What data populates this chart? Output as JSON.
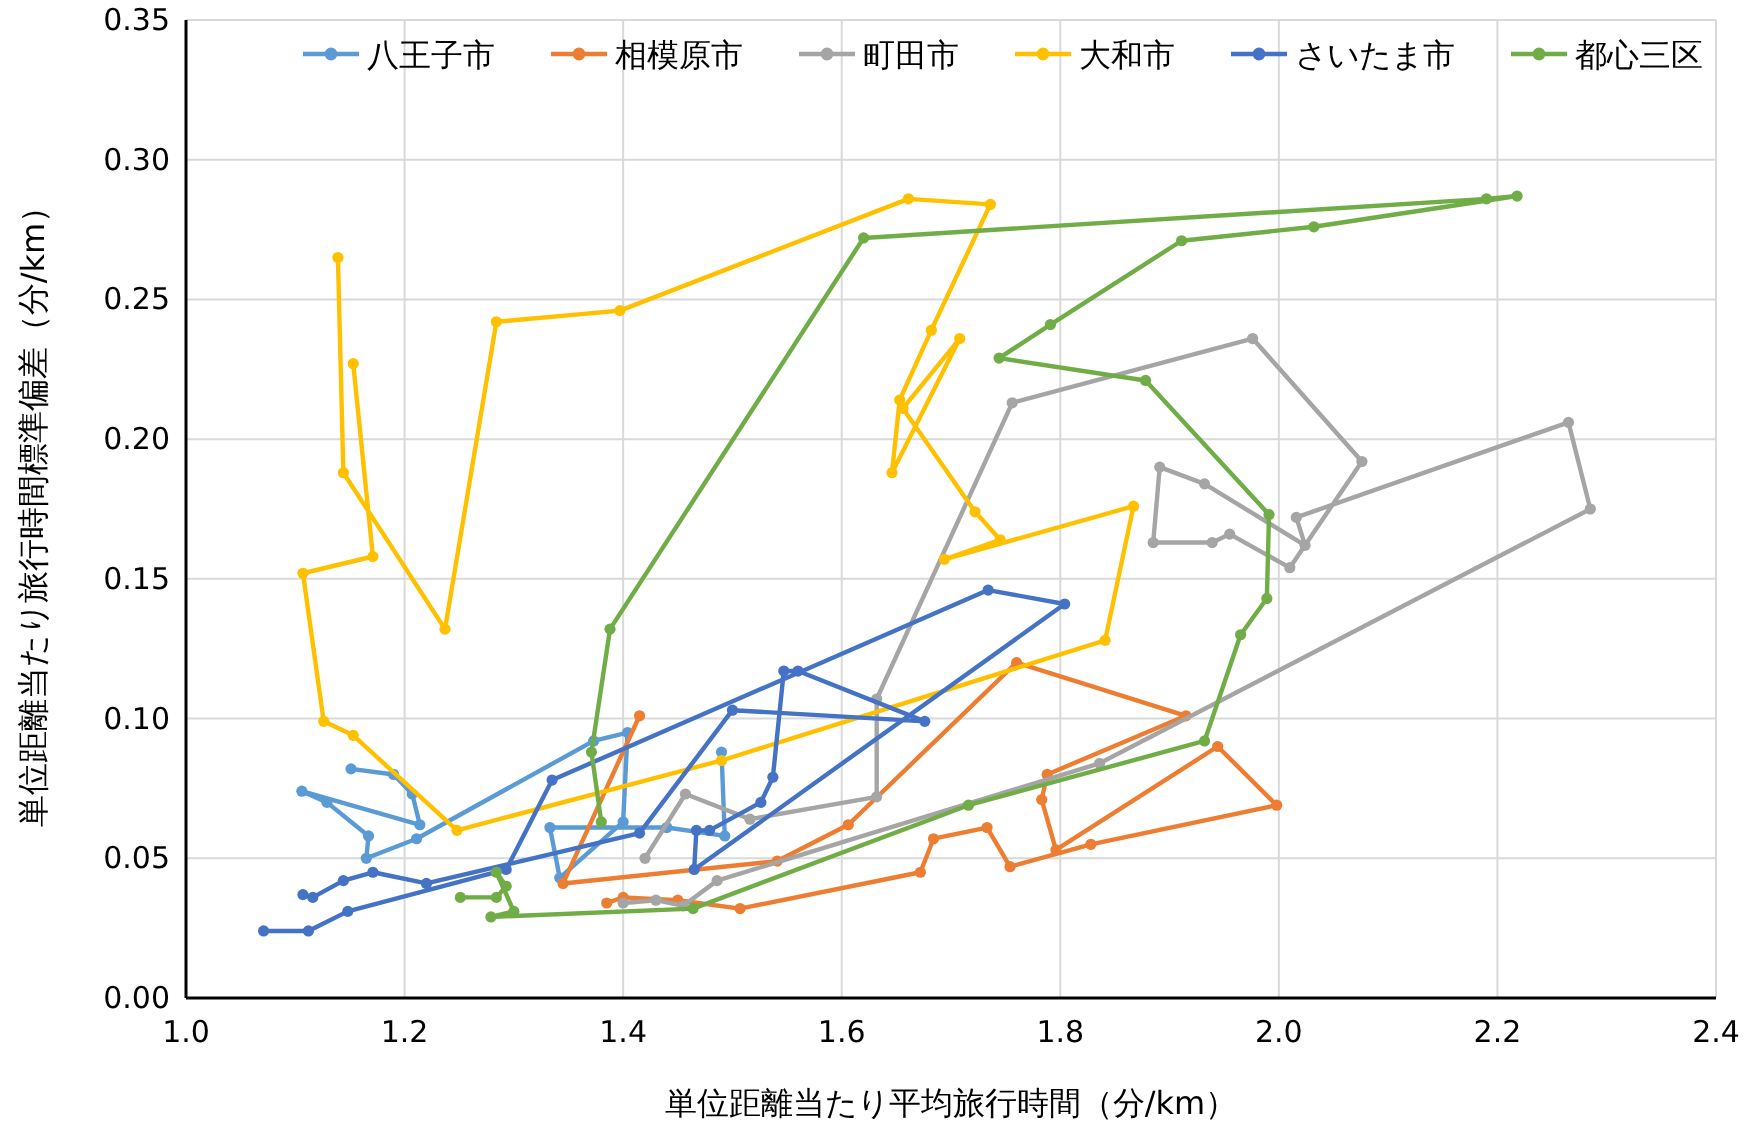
{
  "chart_data": {
    "type": "line",
    "xlabel": "単位距離当たり平均旅行時間（分/km）",
    "ylabel": "単位距離当たり旅行時間標準偏差（分/km）",
    "xlim": [
      1.0,
      2.4
    ],
    "xticks": [
      {
        "value": 1.0,
        "label": "1.0"
      },
      1.2,
      1.4,
      1.6,
      1.8,
      {
        "value": 2.0,
        "label": "2.0"
      },
      2.2,
      2.4
    ],
    "ylim": [
      0,
      0.35
    ],
    "yticks": [
      {
        "value": 0,
        "label": "0.00"
      },
      0.05,
      {
        "value": 0.1,
        "label": "0.10"
      },
      0.15,
      {
        "value": 0.2,
        "label": "0.20"
      },
      0.25,
      {
        "value": 0.3,
        "label": "0.30"
      },
      0.35
    ],
    "grid": true,
    "legend": "top",
    "marker": "circle",
    "line_style": "solid",
    "series": [
      {
        "name": "八王子市",
        "color": "#5b9bd5",
        "x": [
          1.151,
          1.19,
          1.207,
          1.214,
          1.106,
          1.129,
          1.167,
          1.165,
          1.211,
          1.373,
          1.404,
          1.4,
          1.342,
          1.333,
          1.44,
          1.493,
          1.49
        ],
        "values": [
          0.082,
          0.08,
          0.073,
          0.062,
          0.074,
          0.07,
          0.058,
          0.05,
          0.057,
          0.092,
          0.095,
          0.063,
          0.043,
          0.061,
          0.061,
          0.058,
          0.088
        ]
      },
      {
        "name": "相模原市",
        "color": "#ed7d31",
        "x": [
          1.415,
          1.345,
          1.541,
          1.606,
          1.76,
          1.915,
          1.788,
          1.783,
          1.796,
          1.944,
          1.998,
          1.828,
          1.754,
          1.733,
          1.684,
          1.672,
          1.507,
          1.45,
          1.4,
          1.385
        ],
        "values": [
          0.101,
          0.041,
          0.049,
          0.062,
          0.12,
          0.101,
          0.08,
          0.071,
          0.053,
          0.09,
          0.069,
          0.055,
          0.047,
          0.061,
          0.057,
          0.045,
          0.032,
          0.035,
          0.036,
          0.034
        ]
      },
      {
        "name": "町田市",
        "color": "#a5a5a5",
        "x": [
          1.4,
          1.43,
          1.455,
          1.486,
          1.836,
          2.285,
          2.265,
          2.016,
          2.024,
          1.932,
          1.891,
          1.885,
          1.939,
          1.955,
          2.01,
          2.076,
          1.976,
          1.756,
          1.632,
          1.632,
          1.516,
          1.457,
          1.42
        ],
        "values": [
          0.034,
          0.035,
          0.033,
          0.042,
          0.084,
          0.175,
          0.206,
          0.172,
          0.162,
          0.184,
          0.19,
          0.163,
          0.163,
          0.166,
          0.154,
          0.192,
          0.236,
          0.213,
          0.107,
          0.072,
          0.064,
          0.073,
          0.05
        ]
      },
      {
        "name": "大和市",
        "color": "#ffc000",
        "x": [
          1.153,
          1.171,
          1.107,
          1.126,
          1.153,
          1.248,
          1.49,
          1.841,
          1.867,
          1.694,
          1.745,
          1.722,
          1.656,
          1.708,
          1.646,
          1.653,
          1.682,
          1.736,
          1.661,
          1.397,
          1.284,
          1.237,
          1.144,
          1.139
        ],
        "values": [
          0.227,
          0.158,
          0.152,
          0.099,
          0.094,
          0.06,
          0.085,
          0.128,
          0.176,
          0.157,
          0.164,
          0.174,
          0.211,
          0.236,
          0.188,
          0.214,
          0.239,
          0.284,
          0.286,
          0.246,
          0.242,
          0.132,
          0.188,
          0.265
        ]
      },
      {
        "name": "さいたま市",
        "color": "#4472c4",
        "x": [
          1.107,
          1.116,
          1.144,
          1.171,
          1.22,
          1.415,
          1.5,
          1.676,
          1.56,
          1.547,
          1.537,
          1.526,
          1.479,
          1.467,
          1.465,
          1.804,
          1.734,
          1.335,
          1.293,
          1.148,
          1.112,
          1.071
        ],
        "values": [
          0.037,
          0.036,
          0.042,
          0.045,
          0.041,
          0.059,
          0.103,
          0.099,
          0.117,
          0.117,
          0.079,
          0.07,
          0.06,
          0.06,
          0.046,
          0.141,
          0.146,
          0.078,
          0.046,
          0.031,
          0.024,
          0.024
        ]
      },
      {
        "name": "都心三区",
        "color": "#70ad47",
        "x": [
          1.251,
          1.284,
          1.293,
          1.284,
          1.3,
          1.279,
          1.464,
          1.716,
          1.932,
          1.965,
          1.989,
          1.991,
          1.878,
          1.744,
          1.791,
          1.911,
          2.032,
          2.218,
          2.19,
          1.62,
          1.388,
          1.371,
          1.38
        ],
        "values": [
          0.036,
          0.036,
          0.04,
          0.045,
          0.031,
          0.029,
          0.032,
          0.069,
          0.092,
          0.13,
          0.143,
          0.173,
          0.221,
          0.229,
          0.241,
          0.271,
          0.276,
          0.287,
          0.286,
          0.272,
          0.132,
          0.088,
          0.063
        ]
      }
    ]
  }
}
